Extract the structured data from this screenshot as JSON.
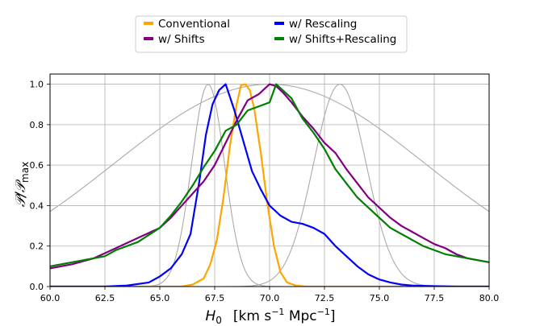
{
  "chart_data": {
    "type": "line",
    "title": "",
    "xlabel": "H_0 [km s^-1 Mpc^-1]",
    "xlabel_parts": {
      "symbol": "H",
      "subscript": "0",
      "units_open": "[km s",
      "units_exp1": "−1",
      "units_mid": " Mpc",
      "units_exp2": "−1",
      "units_close": "]"
    },
    "ylabel": "P/P_max",
    "ylabel_parts": {
      "main": "𝒫/𝒫",
      "subscript": "max"
    },
    "xlim": [
      60,
      80
    ],
    "ylim": [
      0,
      1.05
    ],
    "grid": true,
    "legend_position": "top-center",
    "xticks": [
      60.0,
      62.5,
      65.0,
      67.5,
      70.0,
      72.5,
      75.0,
      77.5,
      80.0
    ],
    "xtick_labels": [
      "60.0",
      "62.5",
      "65.0",
      "67.5",
      "70.0",
      "72.5",
      "75.0",
      "77.5",
      "80.0"
    ],
    "yticks": [
      0.0,
      0.2,
      0.4,
      0.6,
      0.8,
      1.0
    ],
    "ytick_labels": [
      "0.0",
      "0.2",
      "0.4",
      "0.6",
      "0.8",
      "1.0"
    ],
    "legend": [
      {
        "name": "Conventional",
        "color": "#ffa500"
      },
      {
        "name": "w/ Shifts",
        "color": "#800080"
      },
      {
        "name": "w/ Rescaling",
        "color": "#0000ff"
      },
      {
        "name": "w/ Shifts+Rescaling",
        "color": "#008000"
      }
    ],
    "series": [
      {
        "name": "Conventional",
        "color": "#ffa500",
        "in_legend": true,
        "x": [
          60,
          66.0,
          66.5,
          67.0,
          67.3,
          67.6,
          67.9,
          68.2,
          68.5,
          68.7,
          68.9,
          69.1,
          69.3,
          69.6,
          69.9,
          70.2,
          70.5,
          70.8,
          71.2,
          71.6,
          80
        ],
        "y": [
          0.0,
          0.0,
          0.01,
          0.04,
          0.11,
          0.23,
          0.44,
          0.7,
          0.9,
          0.995,
          1.0,
          0.97,
          0.88,
          0.66,
          0.41,
          0.2,
          0.07,
          0.02,
          0.005,
          0.0,
          0.0
        ]
      },
      {
        "name": "w/ Rescaling",
        "color": "#0000ff",
        "in_legend": true,
        "x": [
          60,
          62.5,
          63.5,
          64.5,
          65.0,
          65.5,
          66.0,
          66.4,
          66.8,
          67.1,
          67.4,
          67.7,
          68.0,
          68.4,
          68.8,
          69.2,
          69.6,
          70.0,
          70.5,
          71.0,
          71.5,
          72.0,
          72.5,
          73.0,
          73.5,
          74.0,
          74.5,
          75.0,
          75.5,
          76.0,
          76.5,
          77.5,
          78.5,
          80
        ],
        "y": [
          0.0,
          0.0,
          0.005,
          0.02,
          0.05,
          0.09,
          0.16,
          0.26,
          0.52,
          0.75,
          0.9,
          0.97,
          1.0,
          0.87,
          0.72,
          0.57,
          0.48,
          0.4,
          0.35,
          0.32,
          0.31,
          0.29,
          0.26,
          0.2,
          0.15,
          0.1,
          0.06,
          0.035,
          0.02,
          0.01,
          0.005,
          0.002,
          0.0,
          0.0
        ]
      },
      {
        "name": "w/ Shifts",
        "color": "#800080",
        "in_legend": true,
        "x": [
          60,
          61,
          62,
          63,
          64,
          65,
          65.5,
          66,
          66.5,
          67,
          67.5,
          68,
          68.5,
          69,
          69.5,
          70,
          70.3,
          70.6,
          71,
          71.5,
          72,
          72.5,
          73,
          73.5,
          74,
          74.5,
          75,
          75.5,
          76,
          76.5,
          77,
          77.5,
          78,
          78.5,
          79,
          80
        ],
        "y": [
          0.09,
          0.11,
          0.14,
          0.19,
          0.24,
          0.29,
          0.34,
          0.4,
          0.46,
          0.52,
          0.6,
          0.71,
          0.82,
          0.92,
          0.95,
          1.0,
          0.99,
          0.96,
          0.91,
          0.84,
          0.78,
          0.71,
          0.66,
          0.58,
          0.51,
          0.44,
          0.39,
          0.34,
          0.3,
          0.27,
          0.24,
          0.21,
          0.19,
          0.16,
          0.14,
          0.12
        ]
      },
      {
        "name": "w/ Shifts+Rescaling",
        "color": "#008000",
        "in_legend": true,
        "x": [
          60,
          61,
          62,
          62.5,
          63,
          64,
          65,
          65.5,
          66,
          66.5,
          67,
          67.5,
          68,
          68.5,
          69,
          69.5,
          70,
          70.3,
          70.6,
          71,
          71.5,
          72,
          72.5,
          73,
          73.5,
          74,
          74.5,
          75,
          75.5,
          76,
          76.5,
          77,
          77.5,
          78,
          78.5,
          79,
          80
        ],
        "y": [
          0.1,
          0.12,
          0.14,
          0.15,
          0.18,
          0.22,
          0.29,
          0.35,
          0.42,
          0.5,
          0.59,
          0.67,
          0.77,
          0.8,
          0.87,
          0.89,
          0.91,
          1.0,
          0.97,
          0.93,
          0.83,
          0.76,
          0.68,
          0.58,
          0.51,
          0.44,
          0.39,
          0.34,
          0.29,
          0.26,
          0.23,
          0.2,
          0.18,
          0.16,
          0.15,
          0.14,
          0.12
        ]
      },
      {
        "name": "Gaussian ref ~67.2",
        "color": "#aaaaaa",
        "in_legend": false,
        "mean": 67.2,
        "sigma": 0.75,
        "x": [],
        "y": []
      },
      {
        "name": "Gaussian ref ~73.2",
        "color": "#aaaaaa",
        "in_legend": false,
        "mean": 73.2,
        "sigma": 1.2,
        "x": [],
        "y": []
      },
      {
        "name": "Broad Gaussian ref",
        "color": "#aaaaaa",
        "in_legend": false,
        "mean": 70.0,
        "sigma": 7.1,
        "x": [],
        "y": []
      }
    ]
  }
}
